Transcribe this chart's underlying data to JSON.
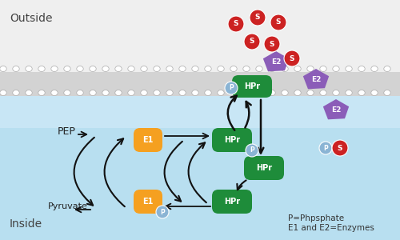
{
  "outside_label": "Outside",
  "inside_label": "Inside",
  "pep_label": "PEP",
  "pyruvate_label": "Pyruvate",
  "legend_line1": "P=Phpsphate",
  "legend_line2": "E1 and E2=Enzymes",
  "bg_top_color": "#efefef",
  "bg_bottom_color": "#a8d8ea",
  "membrane_gray": "#c8c8c8",
  "membrane_white": "#f0f0f0",
  "e1_color": "#f5a020",
  "hpr_color": "#1e8c3a",
  "e2_color": "#8b5db8",
  "glucose_color": "#cc2222",
  "p_color": "#8ab4d4",
  "arrow_color": "#111111",
  "white": "#ffffff"
}
